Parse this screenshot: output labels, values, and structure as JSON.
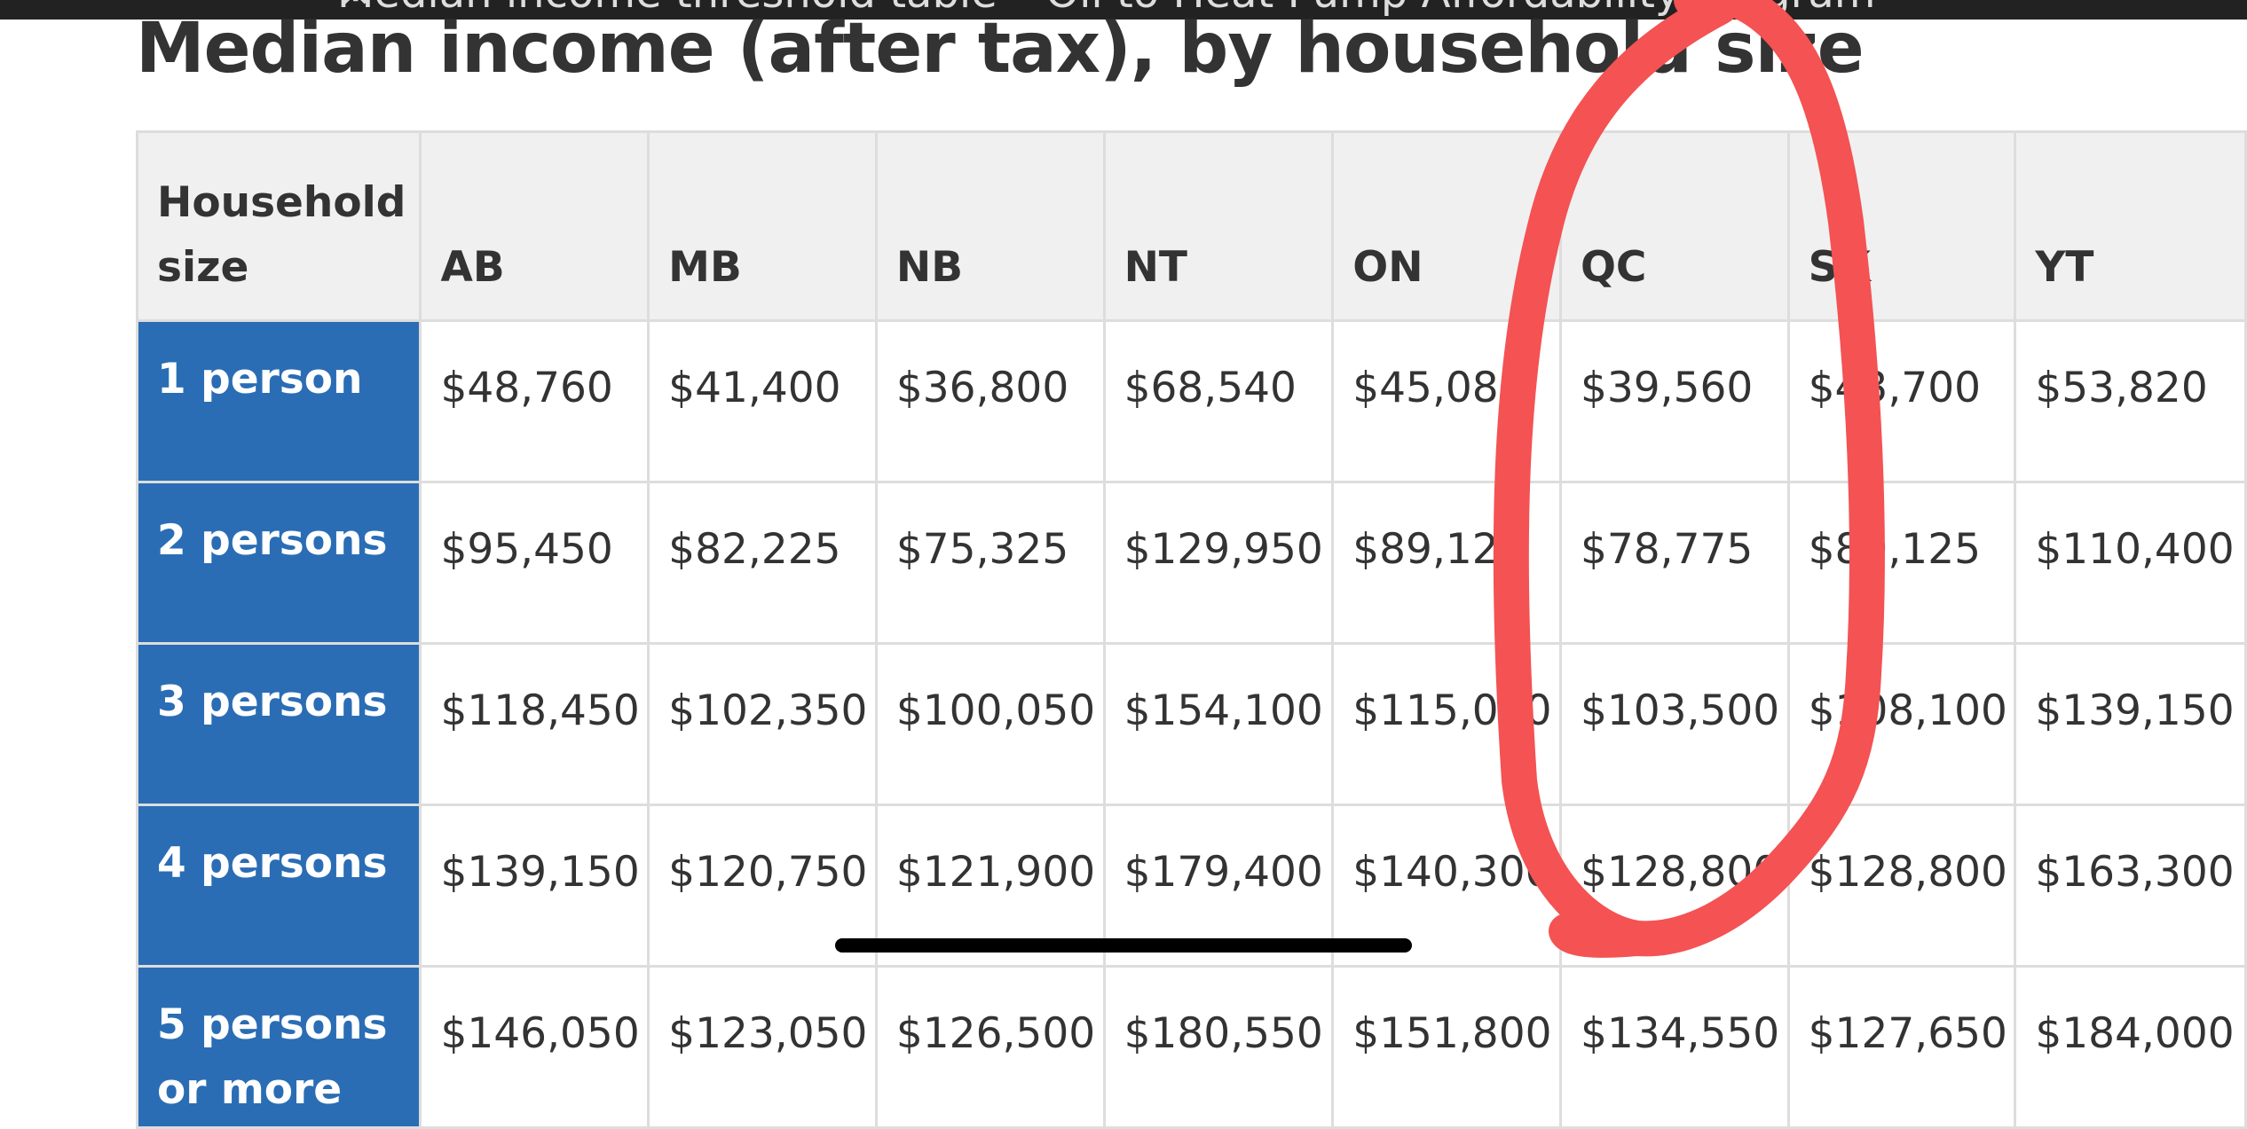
{
  "top_bar": {
    "title": "Median income threshold table – Oil to Heat Pump Affordability program"
  },
  "header": {
    "title": "Median income (after tax), by household size"
  },
  "table": {
    "columns": [
      "Household size",
      "AB",
      "MB",
      "NB",
      "NT",
      "ON",
      "QC",
      "SK",
      "YT"
    ],
    "rows": [
      [
        "1 person",
        "$48,760",
        "$41,400",
        "$36,800",
        "$68,540",
        "$45,080",
        "$39,560",
        "$43,700",
        "$53,820"
      ],
      [
        "2 persons",
        "$95,450",
        "$82,225",
        "$75,325",
        "$129,950",
        "$89,125",
        "$78,775",
        "$89,125",
        "$110,400"
      ],
      [
        "3 persons",
        "$118,450",
        "$102,350",
        "$100,050",
        "$154,100",
        "$115,000",
        "$103,500",
        "$108,100",
        "$139,150"
      ],
      [
        "4 persons",
        "$139,150",
        "$120,750",
        "$121,900",
        "$179,400",
        "$140,300",
        "$128,800",
        "$128,800",
        "$163,300"
      ],
      [
        "5 persons or more",
        "$146,050",
        "$123,050",
        "$126,500",
        "$180,550",
        "$151,800",
        "$134,550",
        "$127,650",
        "$184,000"
      ]
    ]
  }
}
